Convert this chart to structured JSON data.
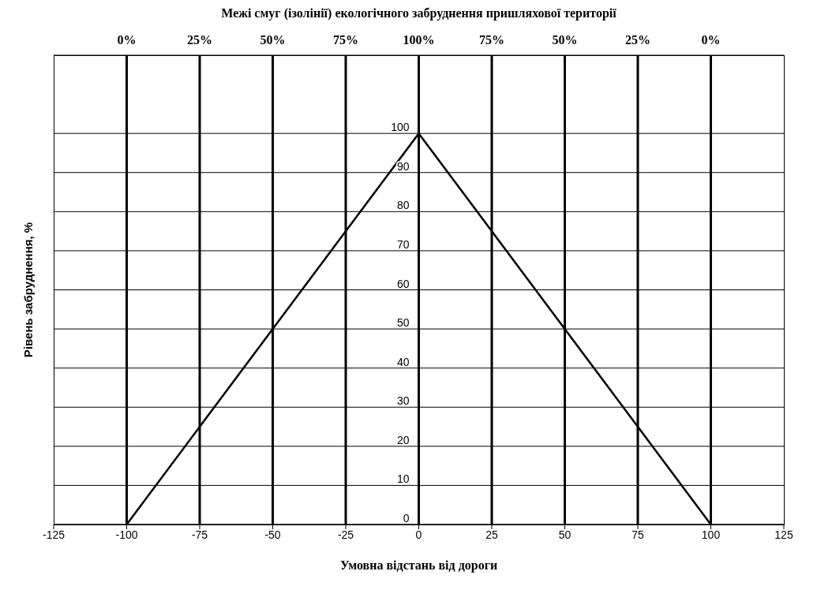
{
  "chart_data": {
    "type": "line",
    "title": "Межі смуг (ізолінії) екологічного забруднення пришляхової території",
    "xlabel": "Умовна відстань від дороги",
    "ylabel": "Рівень забруднення, %",
    "x": [
      -100,
      0,
      100
    ],
    "series": [
      {
        "color": "#000000",
        "values": [
          0,
          100,
          0
        ]
      }
    ],
    "xlim": [
      -125,
      125
    ],
    "xticks": [
      -125,
      -100,
      -75,
      -50,
      -25,
      0,
      25,
      50,
      75,
      100,
      125
    ],
    "ylim": [
      0,
      120
    ],
    "yticks": [
      0,
      10,
      20,
      30,
      40,
      50,
      60,
      70,
      80,
      90,
      100
    ],
    "ref_lines": [
      {
        "axis": "x",
        "value": -100,
        "color": "#000000"
      },
      {
        "axis": "x",
        "value": -75,
        "color": "#000000"
      },
      {
        "axis": "x",
        "value": -50,
        "color": "#000000"
      },
      {
        "axis": "x",
        "value": -25,
        "color": "#000000"
      },
      {
        "axis": "x",
        "value": 0,
        "color": "#000000"
      },
      {
        "axis": "x",
        "value": 25,
        "color": "#000000"
      },
      {
        "axis": "x",
        "value": 50,
        "color": "#000000"
      },
      {
        "axis": "x",
        "value": 75,
        "color": "#000000"
      },
      {
        "axis": "x",
        "value": 100,
        "color": "#000000"
      }
    ],
    "annotations": [
      "0%",
      "25%",
      "50%",
      "75%",
      "100%",
      "75%",
      "50%",
      "25%",
      "0%"
    ],
    "grid": "y",
    "marker": "none",
    "line_style": "solid"
  }
}
